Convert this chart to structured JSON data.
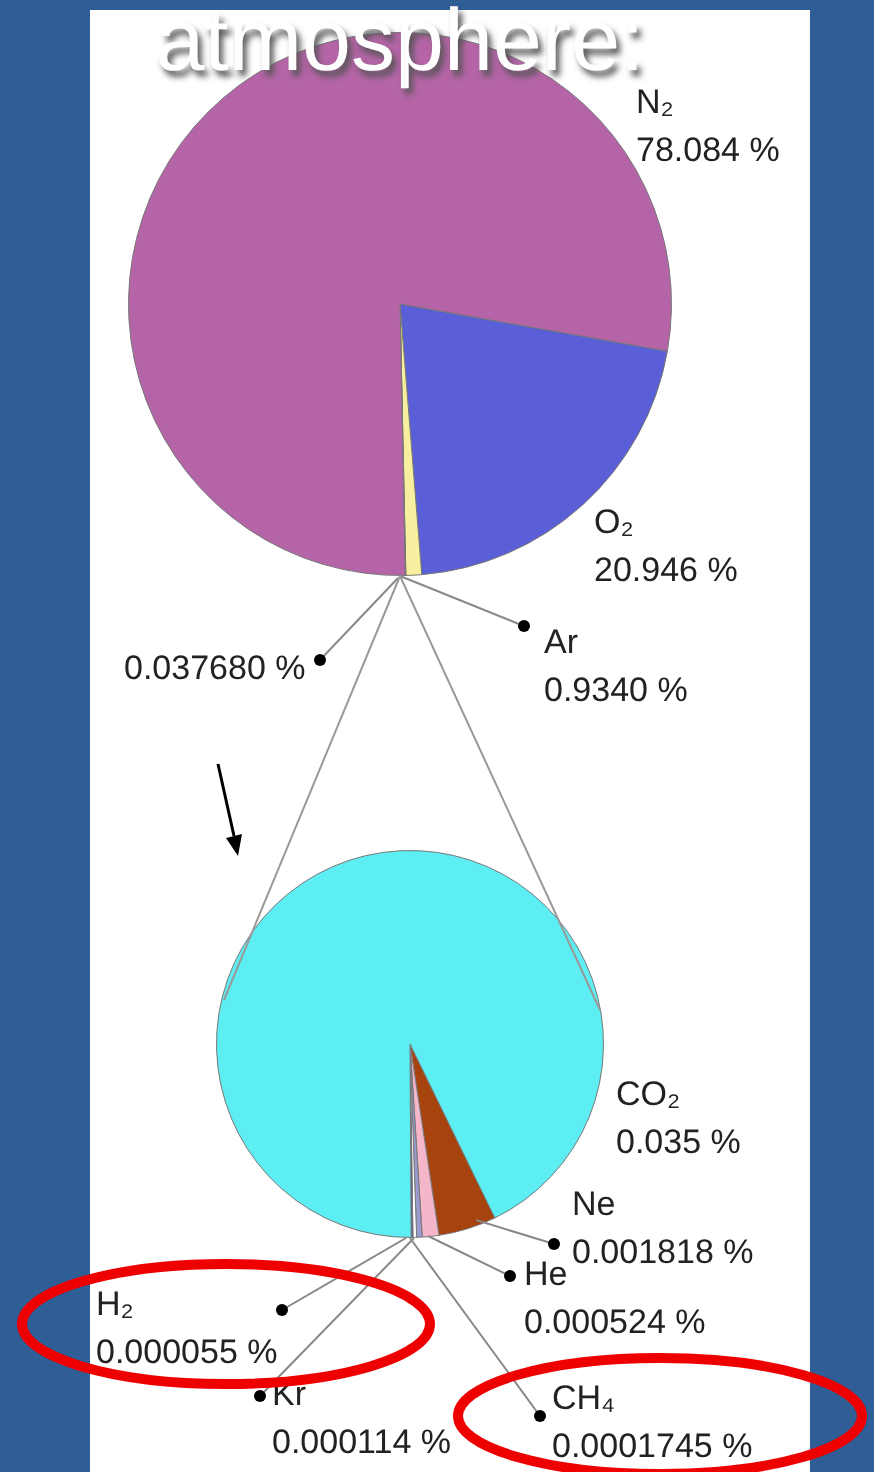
{
  "chart_data": [
    {
      "type": "pie",
      "title": "atmosphere:",
      "categories": [
        "O₂",
        "Ar",
        null,
        "N₂"
      ],
      "values": [
        20.946,
        0.934,
        0.03768,
        78.084
      ],
      "colors": [
        "#5a5fd8",
        "#f8f0a0",
        "#3b3fb5",
        "#b565a7"
      ],
      "value_labels": [
        "20.946 %",
        "0.9340 %",
        "0.037680 %",
        "78.084 %"
      ]
    },
    {
      "type": "pie",
      "categories": [
        "Ne",
        "He",
        "CH₄",
        "Kr",
        "H₂",
        "CO₂"
      ],
      "values": [
        0.001818,
        0.000524,
        0.0001745,
        0.000114,
        5.5e-05,
        0.035
      ],
      "colors": [
        "#a7430e",
        "#f4b6c8",
        "#9a9ad0",
        "#ffffff",
        "#3b3fb5",
        "#5ceef2"
      ],
      "value_labels": [
        "0.001818 %",
        "0.000524 %",
        "0.0001745 %",
        "0.000114 %",
        "0.000055 %",
        "0.035 %"
      ]
    }
  ]
}
